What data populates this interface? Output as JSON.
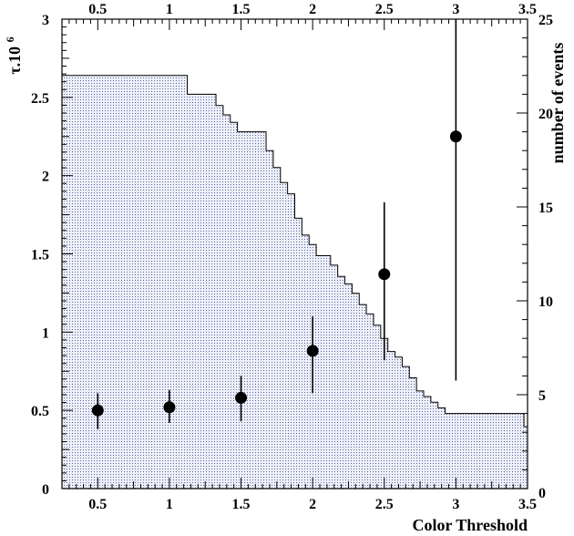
{
  "chart_data": {
    "type": "scatter",
    "xlabel": "Color Threshold",
    "ylabel": "τ.10",
    "ylabel_superscript": "6",
    "y2label": "number of events",
    "xlim": [
      0.25,
      3.5
    ],
    "ylim": [
      0,
      3
    ],
    "y2lim": [
      0,
      25
    ],
    "x_ticks": [
      "0.5",
      "1",
      "1.5",
      "2",
      "2.5",
      "3",
      "3.5"
    ],
    "x_tick_values": [
      0.5,
      1,
      1.5,
      2,
      2.5,
      3,
      3.5
    ],
    "y_ticks": [
      "0",
      "0.5",
      "1",
      "1.5",
      "2",
      "2.5",
      "3"
    ],
    "y_tick_values": [
      0,
      0.5,
      1,
      1.5,
      2,
      2.5,
      3
    ],
    "y2_ticks": [
      "0",
      "5",
      "10",
      "15",
      "20",
      "25"
    ],
    "y2_tick_values": [
      0,
      5,
      10,
      15,
      20,
      25
    ],
    "y2_bottom_tick": "0",
    "histogram": {
      "axis": "right",
      "fill_color": "#cdd4ec",
      "bin_edges": [
        0.25,
        1.125,
        1.325,
        1.375,
        1.425,
        1.475,
        1.675,
        1.725,
        1.775,
        1.825,
        1.875,
        1.925,
        1.975,
        2.025,
        2.125,
        2.175,
        2.225,
        2.275,
        2.325,
        2.375,
        2.425,
        2.475,
        2.525,
        2.575,
        2.625,
        2.675,
        2.725,
        2.775,
        2.825,
        2.875,
        2.925,
        3.475,
        3.5
      ],
      "counts": [
        22,
        21,
        20.4,
        19.9,
        19.5,
        19,
        18,
        17.1,
        16.3,
        15.7,
        14.4,
        13.5,
        13,
        12.4,
        11.9,
        11.3,
        10.9,
        10.4,
        9.8,
        9.3,
        8.7,
        8,
        7.3,
        7,
        6.5,
        5.9,
        5.2,
        4.9,
        4.6,
        4.3,
        4.0,
        3.3
      ]
    },
    "series": [
      {
        "axis": "left",
        "marker": "filled-circle",
        "x": [
          0.5,
          1,
          1.5,
          2,
          2.5,
          3
        ],
        "y": [
          0.5,
          0.52,
          0.58,
          0.88,
          1.37,
          2.25
        ],
        "yerr_low": [
          0.38,
          0.42,
          0.43,
          0.61,
          0.82,
          0.69
        ],
        "yerr_high": [
          0.61,
          0.63,
          0.72,
          1.1,
          1.83,
          3.0
        ]
      }
    ],
    "grid": false
  }
}
